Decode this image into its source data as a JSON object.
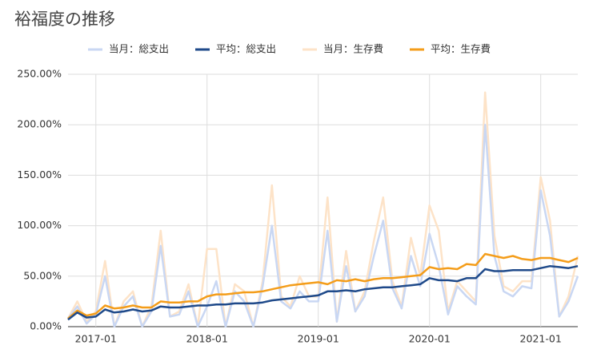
{
  "chart_data": {
    "type": "line",
    "title": "裕福度の推移",
    "categories": [
      null,
      null,
      null,
      "2017-01",
      null,
      null,
      null,
      null,
      null,
      null,
      null,
      null,
      null,
      null,
      null,
      "2018-01",
      null,
      null,
      null,
      null,
      null,
      null,
      null,
      null,
      null,
      null,
      null,
      "2019-01",
      null,
      null,
      null,
      null,
      null,
      null,
      null,
      null,
      null,
      null,
      null,
      "2020-01",
      null,
      null,
      null,
      null,
      null,
      null,
      null,
      null,
      null,
      null,
      null,
      "2021-01",
      null,
      null,
      null,
      null
    ],
    "series": [
      {
        "name": "当月：総支出",
        "color": "#c9d7f3",
        "values": [
          8,
          20,
          3,
          12,
          50,
          0,
          20,
          30,
          0,
          15,
          80,
          10,
          12,
          35,
          0,
          20,
          45,
          0,
          35,
          25,
          0,
          40,
          100,
          25,
          18,
          35,
          25,
          25,
          95,
          5,
          60,
          15,
          30,
          70,
          105,
          38,
          18,
          70,
          40,
          92,
          60,
          12,
          40,
          30,
          22,
          200,
          70,
          35,
          30,
          40,
          38,
          135,
          90,
          10,
          25,
          50
        ]
      },
      {
        "name": "平均：総支出",
        "color": "#1f4a8a",
        "values": [
          7,
          14,
          9,
          10,
          17,
          14,
          15,
          17,
          15,
          16,
          20,
          19,
          19,
          20,
          21,
          21,
          22,
          22,
          23,
          23,
          23,
          24,
          26,
          27,
          28,
          29,
          30,
          31,
          35,
          35,
          36,
          35,
          37,
          38,
          39,
          39,
          40,
          41,
          42,
          48,
          46,
          46,
          45,
          48,
          48,
          57,
          55,
          55,
          56,
          56,
          56,
          58,
          60,
          59,
          58,
          60
        ]
      },
      {
        "name": "当月：生存費",
        "color": "#fde3c8",
        "values": [
          8,
          25,
          5,
          15,
          65,
          0,
          25,
          35,
          0,
          20,
          95,
          10,
          15,
          42,
          0,
          77,
          77,
          0,
          42,
          35,
          0,
          45,
          140,
          30,
          20,
          50,
          30,
          30,
          128,
          5,
          75,
          15,
          35,
          85,
          128,
          45,
          20,
          88,
          50,
          120,
          95,
          15,
          45,
          35,
          25,
          232,
          90,
          40,
          35,
          45,
          45,
          148,
          105,
          10,
          30,
          70
        ]
      },
      {
        "name": "平均：生存費",
        "color": "#f49d1a",
        "values": [
          8,
          16,
          11,
          13,
          21,
          18,
          19,
          21,
          19,
          19,
          25,
          24,
          24,
          25,
          25,
          30,
          32,
          32,
          33,
          34,
          34,
          35,
          37,
          39,
          41,
          42,
          43,
          44,
          42,
          46,
          45,
          47,
          45,
          47,
          48,
          48,
          49,
          50,
          51,
          59,
          57,
          58,
          57,
          62,
          61,
          72,
          70,
          68,
          70,
          67,
          66,
          68,
          68,
          66,
          64,
          68
        ]
      }
    ],
    "ylim": [
      0,
      250
    ],
    "yticks": [
      {
        "value": 0,
        "label": "0.00%"
      },
      {
        "value": 50,
        "label": "50.00%"
      },
      {
        "value": 100,
        "label": "100.00%"
      },
      {
        "value": 150,
        "label": "150.00%"
      },
      {
        "value": 200,
        "label": "200.00%"
      },
      {
        "value": 250,
        "label": "250.00%"
      }
    ],
    "grid": true,
    "legend": "top"
  }
}
